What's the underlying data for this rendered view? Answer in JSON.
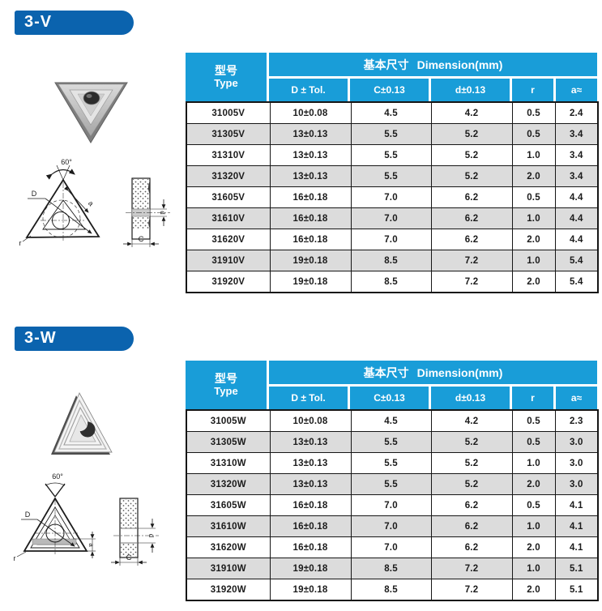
{
  "colors": {
    "banner_blue": "#0b63ae",
    "table_header_blue": "#199dd8",
    "row_alt_gray": "#dcdcdc",
    "grid_black": "#161616"
  },
  "sections": [
    {
      "banner": "3-V",
      "table": {
        "type_zh": "型号",
        "type_en": "Type",
        "dim_zh": "基本尺寸",
        "dim_en": "Dimension(mm)",
        "columns": [
          "D ± Tol.",
          "C±0.13",
          "d±0.13",
          "r",
          "a≈"
        ],
        "rows": [
          [
            "31005V",
            "10±0.08",
            "4.5",
            "4.2",
            "0.5",
            "2.4"
          ],
          [
            "31305V",
            "13±0.13",
            "5.5",
            "5.2",
            "0.5",
            "3.4"
          ],
          [
            "31310V",
            "13±0.13",
            "5.5",
            "5.2",
            "1.0",
            "3.4"
          ],
          [
            "31320V",
            "13±0.13",
            "5.5",
            "5.2",
            "2.0",
            "3.4"
          ],
          [
            "31605V",
            "16±0.18",
            "7.0",
            "6.2",
            "0.5",
            "4.4"
          ],
          [
            "31610V",
            "16±0.18",
            "7.0",
            "6.2",
            "1.0",
            "4.4"
          ],
          [
            "31620V",
            "16±0.18",
            "7.0",
            "6.2",
            "2.0",
            "4.4"
          ],
          [
            "31910V",
            "19±0.18",
            "8.5",
            "7.2",
            "1.0",
            "5.4"
          ],
          [
            "31920V",
            "19±0.18",
            "8.5",
            "7.2",
            "2.0",
            "5.4"
          ]
        ]
      },
      "diagram": {
        "angle": "60°",
        "D": "D",
        "a": "a",
        "r": "r",
        "C": "C",
        "d": "d"
      }
    },
    {
      "banner": "3-W",
      "table": {
        "type_zh": "型号",
        "type_en": "Type",
        "dim_zh": "基本尺寸",
        "dim_en": "Dimension(mm)",
        "columns": [
          "D ± Tol.",
          "C±0.13",
          "d±0.13",
          "r",
          "a≈"
        ],
        "rows": [
          [
            "31005W",
            "10±0.08",
            "4.5",
            "4.2",
            "0.5",
            "2.3"
          ],
          [
            "31305W",
            "13±0.13",
            "5.5",
            "5.2",
            "0.5",
            "3.0"
          ],
          [
            "31310W",
            "13±0.13",
            "5.5",
            "5.2",
            "1.0",
            "3.0"
          ],
          [
            "31320W",
            "13±0.13",
            "5.5",
            "5.2",
            "2.0",
            "3.0"
          ],
          [
            "31605W",
            "16±0.18",
            "7.0",
            "6.2",
            "0.5",
            "4.1"
          ],
          [
            "31610W",
            "16±0.18",
            "7.0",
            "6.2",
            "1.0",
            "4.1"
          ],
          [
            "31620W",
            "16±0.18",
            "7.0",
            "6.2",
            "2.0",
            "4.1"
          ],
          [
            "31910W",
            "19±0.18",
            "8.5",
            "7.2",
            "1.0",
            "5.1"
          ],
          [
            "31920W",
            "19±0.18",
            "8.5",
            "7.2",
            "2.0",
            "5.1"
          ]
        ]
      },
      "diagram": {
        "angle": "60°",
        "D": "D",
        "a": "a",
        "r": "r",
        "C": "C",
        "d": "d"
      }
    }
  ]
}
